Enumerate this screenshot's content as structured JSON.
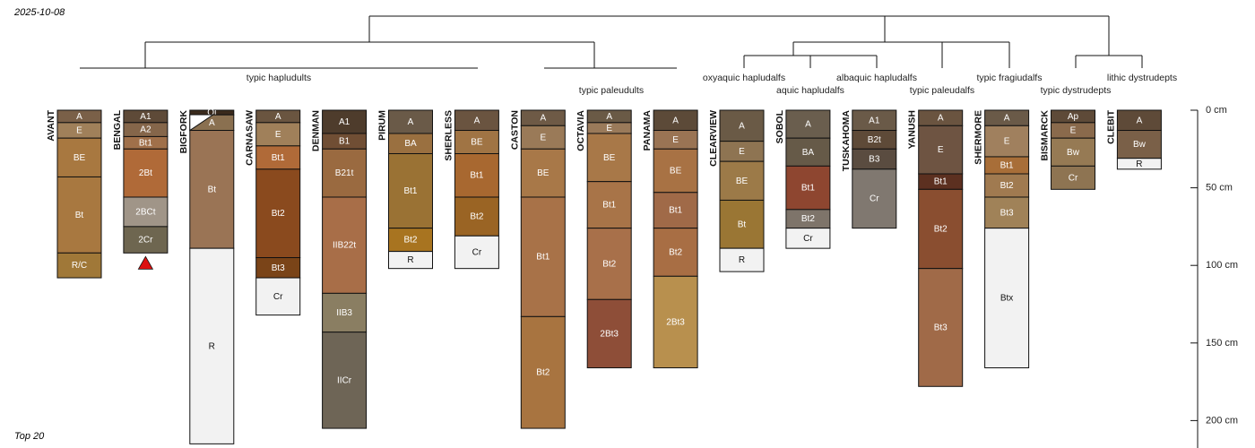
{
  "corner": {
    "date": "2025-10-08",
    "footer": "Top 20"
  },
  "colors": {
    "line": "#111111",
    "marker": "#dd1111"
  },
  "chart_data": {
    "type": "soil-profile-sketch",
    "depth_unit": "cm",
    "depth_axis": {
      "range": [
        0,
        215
      ],
      "ticks": [
        0,
        50,
        100,
        150,
        200
      ],
      "tick_labels": [
        "0 cm",
        "50 cm",
        "100 cm",
        "150 cm",
        "200 cm"
      ]
    },
    "group_labels": [
      "typic hapludults",
      "typic paleudults",
      "oxyaquic hapludalfs",
      "aquic hapludalfs",
      "albaquic hapludalfs",
      "typic paleudalfs",
      "typic fragiudalfs",
      "typic dystrudepts",
      "lithic dystrudepts"
    ],
    "profiles": [
      {
        "name": "AVANT",
        "horizons": [
          {
            "name": "A",
            "top": 0,
            "bottom": 8,
            "color": "#7a6048"
          },
          {
            "name": "E",
            "top": 8,
            "bottom": 18,
            "color": "#a0805a"
          },
          {
            "name": "BE",
            "top": 18,
            "bottom": 43,
            "color": "#a87840"
          },
          {
            "name": "Bt",
            "top": 43,
            "bottom": 92,
            "color": "#a87840"
          },
          {
            "name": "R/C",
            "top": 92,
            "bottom": 108,
            "color": "#a07838"
          }
        ]
      },
      {
        "name": "BENGAL",
        "horizons": [
          {
            "name": "A1",
            "top": 0,
            "bottom": 8,
            "color": "#5e4a38"
          },
          {
            "name": "A2",
            "top": 8,
            "bottom": 17,
            "color": "#85664a"
          },
          {
            "name": "Bt1",
            "top": 17,
            "bottom": 25,
            "color": "#a0704a"
          },
          {
            "name": "2Bt",
            "top": 25,
            "bottom": 56,
            "color": "#b06a38"
          },
          {
            "name": "2BCt",
            "top": 56,
            "bottom": 75,
            "color": "#a09588"
          },
          {
            "name": "2Cr",
            "top": 75,
            "bottom": 92,
            "color": "#6e6650"
          }
        ]
      },
      {
        "name": "BIGFORK",
        "horizons": [
          {
            "name": "Oi",
            "top": 0,
            "bottom": 3,
            "color": "#3a2a1c"
          },
          {
            "name": "A",
            "top": 3,
            "bottom": 13,
            "color": "#8a7050"
          },
          {
            "name": "Bt",
            "top": 13,
            "bottom": 89,
            "color": "#9a7455"
          },
          {
            "name": "R",
            "top": 89,
            "bottom": 215,
            "color": "#f2f2f2"
          }
        ]
      },
      {
        "name": "CARNASAW",
        "horizons": [
          {
            "name": "A",
            "top": 0,
            "bottom": 8,
            "color": "#6a5540"
          },
          {
            "name": "E",
            "top": 8,
            "bottom": 23,
            "color": "#a0805a"
          },
          {
            "name": "Bt1",
            "top": 23,
            "bottom": 38,
            "color": "#b06a38"
          },
          {
            "name": "Bt2",
            "top": 38,
            "bottom": 95,
            "color": "#8a4a1e"
          },
          {
            "name": "Bt3",
            "top": 95,
            "bottom": 108,
            "color": "#7a4418"
          },
          {
            "name": "Cr",
            "top": 108,
            "bottom": 132,
            "color": "#f2f2f2"
          }
        ]
      },
      {
        "name": "DENMAN",
        "horizons": [
          {
            "name": "A1",
            "top": 0,
            "bottom": 15,
            "color": "#4e3c2c"
          },
          {
            "name": "B1",
            "top": 15,
            "bottom": 25,
            "color": "#704e34"
          },
          {
            "name": "B21t",
            "top": 25,
            "bottom": 56,
            "color": "#9a6a40"
          },
          {
            "name": "IIB22t",
            "top": 56,
            "bottom": 118,
            "color": "#a86e48"
          },
          {
            "name": "IIB3",
            "top": 118,
            "bottom": 143,
            "color": "#8a7e62"
          },
          {
            "name": "IICr",
            "top": 143,
            "bottom": 205,
            "color": "#6e6556"
          }
        ]
      },
      {
        "name": "PIRUM",
        "horizons": [
          {
            "name": "A",
            "top": 0,
            "bottom": 15,
            "color": "#6a5a48"
          },
          {
            "name": "BA",
            "top": 15,
            "bottom": 28,
            "color": "#9a7040"
          },
          {
            "name": "Bt1",
            "top": 28,
            "bottom": 76,
            "color": "#9a7234"
          },
          {
            "name": "Bt2",
            "top": 76,
            "bottom": 91,
            "color": "#a87420"
          },
          {
            "name": "R",
            "top": 91,
            "bottom": 102,
            "color": "#f2f2f2"
          }
        ]
      },
      {
        "name": "SHERLESS",
        "horizons": [
          {
            "name": "A",
            "top": 0,
            "bottom": 13,
            "color": "#6a5440"
          },
          {
            "name": "BE",
            "top": 13,
            "bottom": 28,
            "color": "#a07444"
          },
          {
            "name": "Bt1",
            "top": 28,
            "bottom": 56,
            "color": "#a86830"
          },
          {
            "name": "Bt2",
            "top": 56,
            "bottom": 81,
            "color": "#9a6424"
          },
          {
            "name": "Cr",
            "top": 81,
            "bottom": 102,
            "color": "#f2f2f2"
          }
        ]
      },
      {
        "name": "CASTON",
        "horizons": [
          {
            "name": "A",
            "top": 0,
            "bottom": 10,
            "color": "#6e5a46"
          },
          {
            "name": "E",
            "top": 10,
            "bottom": 25,
            "color": "#9a7a58"
          },
          {
            "name": "BE",
            "top": 25,
            "bottom": 56,
            "color": "#a87848"
          },
          {
            "name": "Bt1",
            "top": 56,
            "bottom": 133,
            "color": "#a87248"
          },
          {
            "name": "Bt2",
            "top": 133,
            "bottom": 205,
            "color": "#a87440"
          }
        ]
      },
      {
        "name": "OCTAVIA",
        "horizons": [
          {
            "name": "A",
            "top": 0,
            "bottom": 8,
            "color": "#6a5a46"
          },
          {
            "name": "E",
            "top": 8,
            "bottom": 15,
            "color": "#9a7a5a"
          },
          {
            "name": "BE",
            "top": 15,
            "bottom": 46,
            "color": "#a87848"
          },
          {
            "name": "Bt1",
            "top": 46,
            "bottom": 76,
            "color": "#a87448"
          },
          {
            "name": "Bt2",
            "top": 76,
            "bottom": 122,
            "color": "#a8704a"
          },
          {
            "name": "2Bt3",
            "top": 122,
            "bottom": 166,
            "color": "#8e4e38"
          }
        ]
      },
      {
        "name": "PANAMA",
        "horizons": [
          {
            "name": "A",
            "top": 0,
            "bottom": 13,
            "color": "#5c4a38"
          },
          {
            "name": "E",
            "top": 13,
            "bottom": 25,
            "color": "#9a7454"
          },
          {
            "name": "BE",
            "top": 25,
            "bottom": 53,
            "color": "#a87244"
          },
          {
            "name": "Bt1",
            "top": 53,
            "bottom": 76,
            "color": "#a06a48"
          },
          {
            "name": "Bt2",
            "top": 76,
            "bottom": 107,
            "color": "#a86e44"
          },
          {
            "name": "2Bt3",
            "top": 107,
            "bottom": 166,
            "color": "#b8904e"
          }
        ]
      },
      {
        "name": "CLEARVIEW",
        "horizons": [
          {
            "name": "A",
            "top": 0,
            "bottom": 20,
            "color": "#6a5a46"
          },
          {
            "name": "E",
            "top": 20,
            "bottom": 33,
            "color": "#8e7452"
          },
          {
            "name": "BE",
            "top": 33,
            "bottom": 58,
            "color": "#9c7a48"
          },
          {
            "name": "Bt",
            "top": 58,
            "bottom": 89,
            "color": "#9a7634"
          },
          {
            "name": "R",
            "top": 89,
            "bottom": 104,
            "color": "#f2f2f2"
          }
        ]
      },
      {
        "name": "SOBOL",
        "horizons": [
          {
            "name": "A",
            "top": 0,
            "bottom": 18,
            "color": "#6a5e4e"
          },
          {
            "name": "BA",
            "top": 18,
            "bottom": 36,
            "color": "#665a48"
          },
          {
            "name": "Bt1",
            "top": 36,
            "bottom": 64,
            "color": "#8e4630"
          },
          {
            "name": "Bt2",
            "top": 64,
            "bottom": 76,
            "color": "#7e746a"
          },
          {
            "name": "Cr",
            "top": 76,
            "bottom": 89,
            "color": "#f2f2f2"
          }
        ]
      },
      {
        "name": "TUSKAHOMA",
        "horizons": [
          {
            "name": "A1",
            "top": 0,
            "bottom": 13,
            "color": "#6a5a48"
          },
          {
            "name": "B2t",
            "top": 13,
            "bottom": 25,
            "color": "#5e4a38"
          },
          {
            "name": "B3",
            "top": 25,
            "bottom": 38,
            "color": "#5a4c40"
          },
          {
            "name": "Cr",
            "top": 38,
            "bottom": 76,
            "color": "#807870"
          }
        ]
      },
      {
        "name": "YANUSH",
        "horizons": [
          {
            "name": "A",
            "top": 0,
            "bottom": 10,
            "color": "#6a5440"
          },
          {
            "name": "E",
            "top": 10,
            "bottom": 41,
            "color": "#6e5442"
          },
          {
            "name": "Bt1",
            "top": 41,
            "bottom": 51,
            "color": "#5c3020"
          },
          {
            "name": "Bt2",
            "top": 51,
            "bottom": 102,
            "color": "#8a4e30"
          },
          {
            "name": "Bt3",
            "top": 102,
            "bottom": 178,
            "color": "#a06a48"
          }
        ]
      },
      {
        "name": "SHERMORE",
        "horizons": [
          {
            "name": "A",
            "top": 0,
            "bottom": 10,
            "color": "#6a5a48"
          },
          {
            "name": "E",
            "top": 10,
            "bottom": 30,
            "color": "#a0805e"
          },
          {
            "name": "Bt1",
            "top": 30,
            "bottom": 41,
            "color": "#a86e38"
          },
          {
            "name": "Bt2",
            "top": 41,
            "bottom": 56,
            "color": "#a07a50"
          },
          {
            "name": "Bt3",
            "top": 56,
            "bottom": 76,
            "color": "#a08258"
          },
          {
            "name": "Btx",
            "top": 76,
            "bottom": 166,
            "color": "#f2f2f2"
          }
        ]
      },
      {
        "name": "BISMARCK",
        "horizons": [
          {
            "name": "Ap",
            "top": 0,
            "bottom": 8,
            "color": "#5e4a38"
          },
          {
            "name": "E",
            "top": 8,
            "bottom": 18,
            "color": "#8a6a4c"
          },
          {
            "name": "Bw",
            "top": 18,
            "bottom": 36,
            "color": "#967a54"
          },
          {
            "name": "Cr",
            "top": 36,
            "bottom": 51,
            "color": "#8e7452"
          }
        ]
      },
      {
        "name": "CLEBIT",
        "horizons": [
          {
            "name": "A",
            "top": 0,
            "bottom": 13,
            "color": "#5e4a38"
          },
          {
            "name": "Bw",
            "top": 13,
            "bottom": 31,
            "color": "#7a6048"
          },
          {
            "name": "R",
            "top": 31,
            "bottom": 38,
            "color": "#f2f2f2"
          }
        ]
      }
    ],
    "markers": [
      {
        "profile": "BENGAL",
        "depth": 92,
        "shape": "triangle"
      }
    ]
  }
}
